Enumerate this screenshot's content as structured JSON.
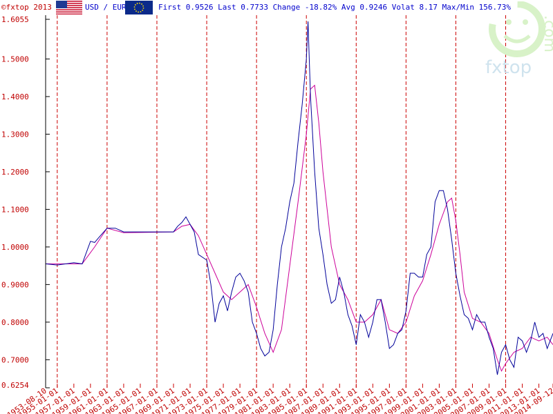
{
  "header": {
    "copyright": "©fxtop 2013",
    "pair": "USD / EUR",
    "stats_text": "First 0.9526 Last 0.7733 Change -18.82% Avg 0.9246 Volat 8.17 Max/Min 156.73%"
  },
  "logo": {
    "text": "fxtop",
    "suffix": ".com"
  },
  "colors": {
    "axis": "#cc0000",
    "grid": "#cc0000",
    "price": "#000099",
    "average": "#cc0099",
    "frame": "#000000"
  },
  "chart_data": {
    "type": "line",
    "ylim": [
      0.6254,
      1.6055
    ],
    "y_ticks": [
      "0.6254",
      "0.7000",
      "0.8000",
      "0.9000",
      "1.0000",
      "1.1000",
      "1.2000",
      "1.3000",
      "1.4000",
      "1.5000",
      "1.6055"
    ],
    "x_ticks": [
      "1953-08-10",
      "1955-01-01",
      "1957-01-01",
      "1959-01-01",
      "1961-01-01",
      "1963-01-01",
      "1965-01-01",
      "1967-01-01",
      "1969-01-01",
      "1971-01-01",
      "1973-01-01",
      "1975-01-01",
      "1977-01-01",
      "1979-01-01",
      "1981-01-01",
      "1983-01-01",
      "1985-01-01",
      "1987-01-01",
      "1989-01-01",
      "1991-01-01",
      "1993-01-01",
      "1995-01-01",
      "1997-01-01",
      "1999-01-01",
      "2001-01-01",
      "2003-01-01",
      "2005-01-01",
      "2007-01-01",
      "2009-01-01",
      "2011-01-01",
      "2013-01-01",
      "2014-09-12"
    ],
    "grid_years": [
      1955,
      1961,
      1967,
      1973,
      1979,
      1985,
      1991,
      1997,
      2003,
      2009
    ],
    "series": [
      {
        "x": [
          1953.6,
          1955.0,
          1957.0,
          1958.0,
          1959.0,
          1959.5,
          1960.0,
          1961.0,
          1962.0,
          1963.0,
          1965.0,
          1967.0,
          1969.0,
          1969.5,
          1970.0,
          1970.5,
          1971.0,
          1971.5,
          1972.0,
          1973.0,
          1973.5,
          1974.0,
          1974.5,
          1975.0,
          1975.5,
          1976.0,
          1976.5,
          1977.0,
          1977.5,
          1978.0,
          1978.5,
          1979.0,
          1979.5,
          1980.0,
          1980.5,
          1981.0,
          1981.5,
          1982.0,
          1982.5,
          1983.0,
          1983.5,
          1984.0,
          1984.5,
          1985.0,
          1985.2,
          1985.5,
          1986.0,
          1986.5,
          1987.0,
          1987.5,
          1988.0,
          1988.5,
          1989.0,
          1989.5,
          1990.0,
          1990.5,
          1991.0,
          1991.5,
          1992.0,
          1992.5,
          1993.0,
          1993.5,
          1994.0,
          1994.5,
          1995.0,
          1995.5,
          1996.0,
          1996.5,
          1997.0,
          1997.5,
          1998.0,
          1998.5,
          1999.0,
          1999.5,
          2000.0,
          2000.5,
          2001.0,
          2001.5,
          2002.0,
          2002.5,
          2003.0,
          2003.5,
          2004.0,
          2004.5,
          2005.0,
          2005.5,
          2006.0,
          2006.5,
          2007.0,
          2007.5,
          2008.0,
          2008.5,
          2009.0,
          2009.5,
          2010.0,
          2010.5,
          2011.0,
          2011.5,
          2012.0,
          2012.5,
          2013.0,
          2013.5,
          2014.0,
          2014.7
        ],
        "values": [
          0.955,
          0.952,
          0.958,
          0.955,
          1.015,
          1.012,
          1.025,
          1.05,
          1.05,
          1.04,
          1.04,
          1.04,
          1.04,
          1.055,
          1.065,
          1.08,
          1.06,
          1.04,
          0.98,
          0.965,
          0.9,
          0.8,
          0.85,
          0.87,
          0.83,
          0.88,
          0.92,
          0.93,
          0.91,
          0.88,
          0.8,
          0.77,
          0.73,
          0.71,
          0.72,
          0.78,
          0.9,
          1.0,
          1.05,
          1.12,
          1.17,
          1.28,
          1.38,
          1.5,
          1.6,
          1.4,
          1.2,
          1.05,
          0.98,
          0.9,
          0.85,
          0.86,
          0.92,
          0.88,
          0.82,
          0.79,
          0.74,
          0.82,
          0.8,
          0.76,
          0.8,
          0.86,
          0.86,
          0.8,
          0.73,
          0.74,
          0.77,
          0.78,
          0.83,
          0.93,
          0.93,
          0.92,
          0.92,
          0.98,
          1.0,
          1.12,
          1.15,
          1.15,
          1.1,
          1.02,
          0.93,
          0.87,
          0.82,
          0.81,
          0.78,
          0.82,
          0.8,
          0.8,
          0.76,
          0.73,
          0.66,
          0.72,
          0.74,
          0.7,
          0.68,
          0.76,
          0.75,
          0.72,
          0.75,
          0.8,
          0.76,
          0.77,
          0.73,
          0.77
        ]
      },
      {
        "x": [
          1953.6,
          1958.0,
          1959.5,
          1961.0,
          1963.0,
          1969.0,
          1970.0,
          1971.0,
          1972.0,
          1973.0,
          1974.0,
          1975.0,
          1976.0,
          1977.0,
          1978.0,
          1979.0,
          1980.0,
          1981.0,
          1982.0,
          1983.0,
          1984.0,
          1985.0,
          1985.5,
          1986.0,
          1986.5,
          1987.0,
          1988.0,
          1989.0,
          1990.0,
          1991.0,
          1992.0,
          1993.0,
          1994.0,
          1995.0,
          1996.0,
          1997.0,
          1998.0,
          1999.0,
          2000.0,
          2001.0,
          2002.0,
          2002.5,
          2003.0,
          2003.5,
          2004.0,
          2005.0,
          2006.0,
          2007.0,
          2008.0,
          2008.5,
          2009.0,
          2010.0,
          2011.0,
          2012.0,
          2013.0,
          2014.0,
          2014.7
        ],
        "values": [
          0.955,
          0.955,
          1.0,
          1.05,
          1.038,
          1.04,
          1.055,
          1.06,
          1.03,
          0.98,
          0.93,
          0.88,
          0.86,
          0.88,
          0.9,
          0.84,
          0.77,
          0.72,
          0.78,
          0.95,
          1.12,
          1.3,
          1.42,
          1.43,
          1.33,
          1.2,
          1.0,
          0.9,
          0.86,
          0.8,
          0.8,
          0.82,
          0.86,
          0.78,
          0.77,
          0.8,
          0.87,
          0.91,
          0.98,
          1.06,
          1.12,
          1.13,
          1.07,
          0.98,
          0.88,
          0.81,
          0.8,
          0.77,
          0.7,
          0.67,
          0.69,
          0.72,
          0.73,
          0.76,
          0.75,
          0.76,
          0.74
        ]
      }
    ]
  }
}
